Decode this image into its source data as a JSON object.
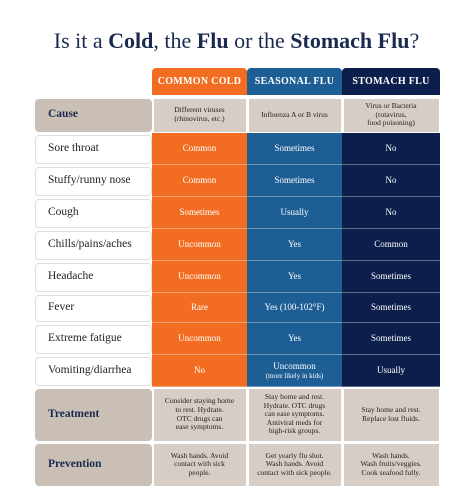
{
  "title": [
    {
      "text": "Is it a ",
      "bold": false
    },
    {
      "text": "Cold",
      "bold": true
    },
    {
      "text": ", the ",
      "bold": false
    },
    {
      "text": "Flu",
      "bold": true
    },
    {
      "text": " or the ",
      "bold": false
    },
    {
      "text": "Stomach Flu",
      "bold": true
    },
    {
      "text": "?",
      "bold": false
    }
  ],
  "columns": [
    {
      "name": "COMMON COLD",
      "color": "#f26d21"
    },
    {
      "name": "SEASONAL FLU",
      "color": "#1d5e95"
    },
    {
      "name": "STOMACH FLU",
      "color": "#0c1f4c"
    }
  ],
  "rows": [
    {
      "label": "Cause",
      "highlight": true,
      "cells": [
        "Different viruses\n(rhinovirus, etc.)",
        "Influenza A or B virus",
        "Virus or Bacteria\n(rotavirus,\nfood poisoning)"
      ]
    },
    {
      "label": "Sore throat",
      "highlight": false,
      "cells": [
        "Common",
        "Sometimes",
        "No"
      ]
    },
    {
      "label": "Stuffy/runny nose",
      "highlight": false,
      "cells": [
        "Common",
        "Sometimes",
        "No"
      ]
    },
    {
      "label": "Cough",
      "highlight": false,
      "cells": [
        "Sometimes",
        "Usually",
        "No"
      ]
    },
    {
      "label": "Chills/pains/aches",
      "highlight": false,
      "cells": [
        "Uncommon",
        "Yes",
        "Common"
      ]
    },
    {
      "label": "Headache",
      "highlight": false,
      "cells": [
        "Uncommon",
        "Yes",
        "Sometimes"
      ]
    },
    {
      "label": "Fever",
      "highlight": false,
      "cells": [
        "Rare",
        "Yes (100-102°F)",
        "Sometimes"
      ]
    },
    {
      "label": "Extreme fatigue",
      "highlight": false,
      "cells": [
        "Uncommon",
        "Yes",
        "Sometimes"
      ]
    },
    {
      "label": "Vomiting/diarrhea",
      "highlight": false,
      "cells": [
        "No",
        [
          "Uncommon",
          "(more likely in kids)"
        ],
        "Usually"
      ]
    },
    {
      "label": "Treatment",
      "highlight": true,
      "cells": [
        "Consider staying home\nto rest. Hydrate.\nOTC drugs can\nease symptoms.",
        "Stay home and rest.\nHydrate. OTC drugs\ncan ease symptoms.\nAntiviral meds for\nhigh-risk groups.",
        "Stay home and rest.\nReplace lost fluids."
      ]
    },
    {
      "label": "Prevention",
      "highlight": true,
      "cells": [
        "Wash hands. Avoid\ncontact with sick\npeople.",
        "Get yearly flu shot.\nWash hands. Avoid\ncontact with sick people.",
        "Wash hands.\nWash fruits/veggies.\nCook seafood fully."
      ]
    }
  ]
}
